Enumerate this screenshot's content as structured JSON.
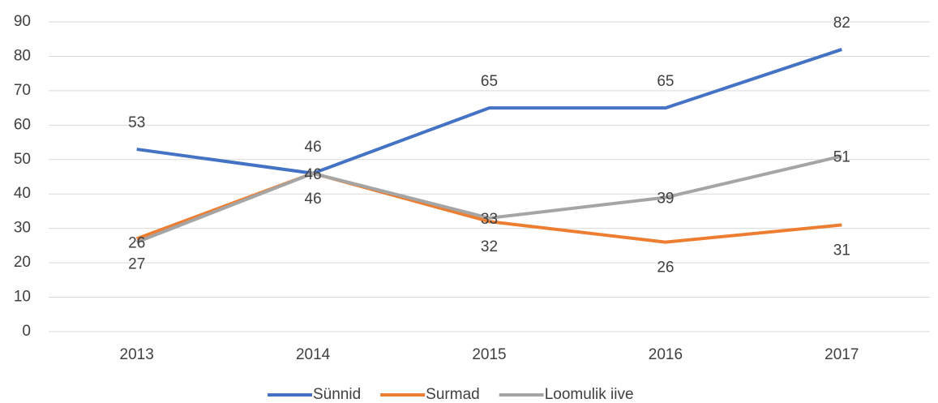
{
  "chart_data": {
    "type": "line",
    "categories": [
      "2013",
      "2014",
      "2015",
      "2016",
      "2017"
    ],
    "series": [
      {
        "name": "Sünnid",
        "color": "#4472c4",
        "values": [
          53,
          46,
          65,
          65,
          82
        ]
      },
      {
        "name": "Surmad",
        "color": "#ed7d31",
        "values": [
          27,
          46,
          32,
          26,
          31
        ]
      },
      {
        "name": "Loomulik iive",
        "color": "#a5a5a5",
        "values": [
          26,
          46,
          33,
          39,
          51
        ]
      }
    ],
    "ylim": [
      0,
      90
    ],
    "yticks": [
      0,
      10,
      20,
      30,
      40,
      50,
      60,
      70,
      80,
      90
    ],
    "grid": true,
    "legend": "bottom"
  }
}
